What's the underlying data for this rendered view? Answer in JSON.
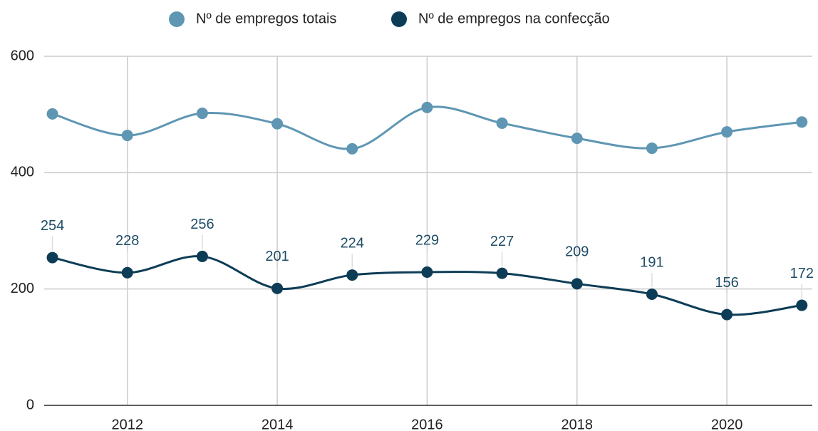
{
  "chart_data": {
    "type": "line",
    "x": [
      2011,
      2012,
      2013,
      2014,
      2015,
      2016,
      2017,
      2018,
      2019,
      2020,
      2021
    ],
    "series": [
      {
        "name": "Nº de empregos totais",
        "color": "#5f96b3",
        "values": [
          501,
          464,
          502,
          484,
          441,
          512,
          485,
          459,
          442,
          470,
          487
        ]
      },
      {
        "name": "Nº de empregos na confecção",
        "color": "#0d3d56",
        "values": [
          254,
          228,
          256,
          201,
          224,
          229,
          227,
          209,
          191,
          156,
          172
        ],
        "show_labels": true
      }
    ],
    "xlim": [
      2010.89,
      2021.14
    ],
    "xticks": [
      2012,
      2014,
      2016,
      2018,
      2020
    ],
    "ylim": [
      0,
      600
    ],
    "yticks": [
      0,
      200,
      400,
      600
    ],
    "grid": true,
    "legend": "top"
  }
}
